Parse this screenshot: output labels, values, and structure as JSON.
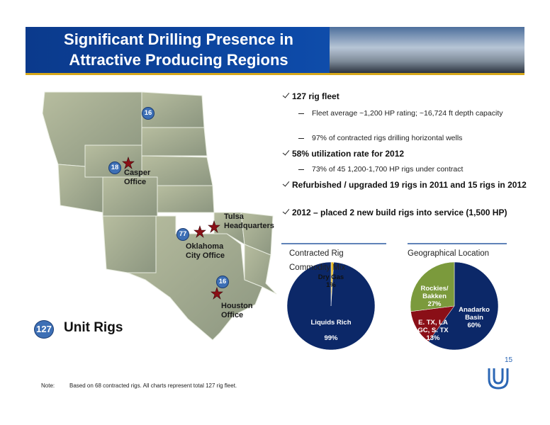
{
  "header": {
    "title": "Significant Drilling Presence in Attractive Producing Regions"
  },
  "map": {
    "markers": [
      {
        "count": 16
      },
      {
        "count": 18,
        "office": "Casper Office"
      },
      {
        "count": 77,
        "office": "Oklahoma City Office"
      },
      {
        "office": "Tulsa Headquarters"
      },
      {
        "count": 16,
        "office": "Houston Office"
      }
    ],
    "total": 127,
    "total_label": "Unit Rigs"
  },
  "bullets": [
    {
      "text": "127 rig fleet",
      "subs": [
        "Fleet average ~1,200 HP rating; ~16,724 ft depth capacity",
        "97% of contracted rigs drilling horizontal wells"
      ]
    },
    {
      "text": "58% utilization rate for 2012",
      "subs": [
        "73% of 45 1,200-1,700 HP rigs under contract"
      ]
    },
    {
      "text": "Refurbished / upgraded 19 rigs in 2011 and 15 rigs in 2012",
      "subs": []
    },
    {
      "text": "2012 – placed 2 new build rigs into service (1,500 HP)",
      "subs": []
    }
  ],
  "chart_data": [
    {
      "type": "pie",
      "title": "Contracted Rig Commodity Mix",
      "categories": [
        "Dry Gas",
        "Liquids Rich"
      ],
      "values": [
        1,
        99
      ],
      "value_labels": [
        "1%",
        "99%"
      ],
      "colors": [
        "#e3b51c",
        "#0c2868"
      ]
    },
    {
      "type": "pie",
      "title": "Geographical Location",
      "categories": [
        "Anadarko Basin",
        "E. TX, LA GC, S. TX",
        "Rockies/ Bakken"
      ],
      "values": [
        60,
        13,
        27
      ],
      "value_labels": [
        "60%",
        "13%",
        "27%"
      ],
      "colors": [
        "#0c2868",
        "#8a0f17",
        "#7b9a3c"
      ]
    }
  ],
  "footer": {
    "page": "15",
    "note_label": "Note:",
    "note": "Based on 68 contracted rigs. All charts represent total 127 rig fleet."
  }
}
